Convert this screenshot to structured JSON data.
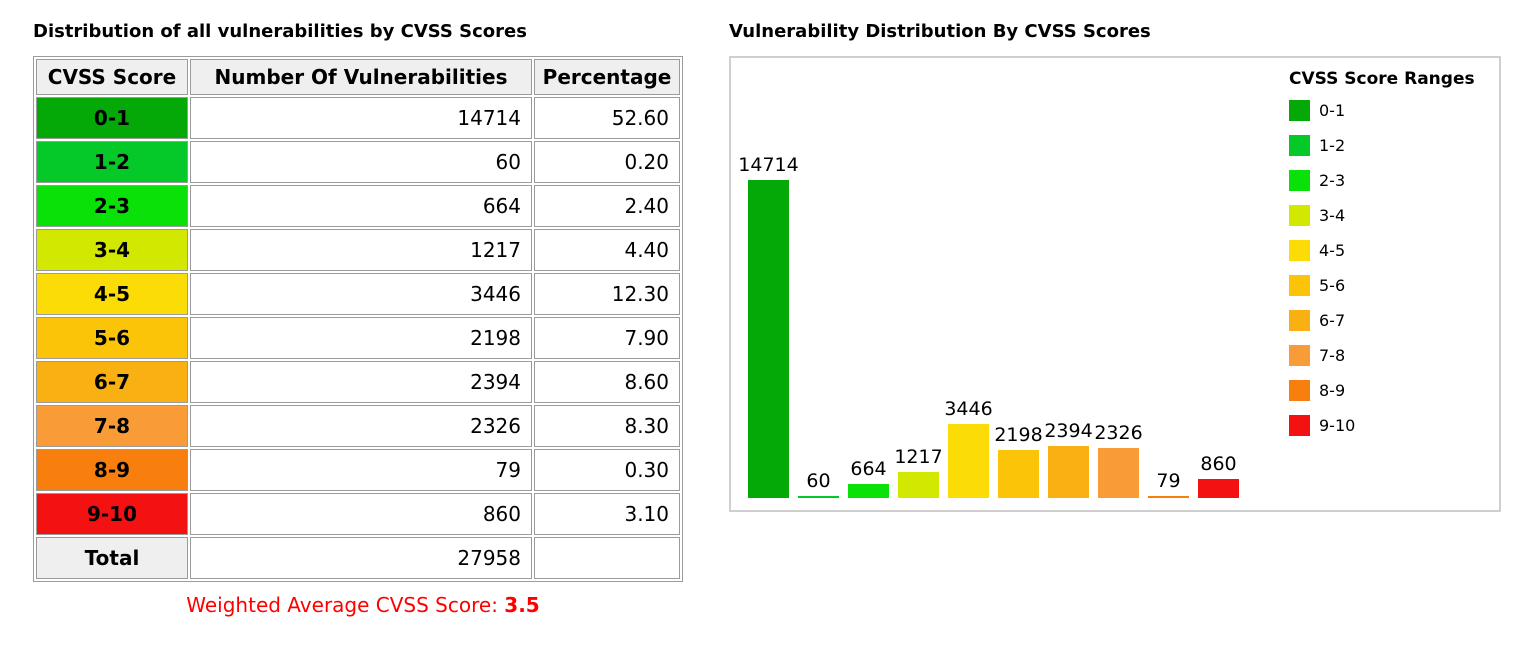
{
  "table_section": {
    "title": "Distribution of all vulnerabilities by CVSS Scores",
    "headers": [
      "CVSS Score",
      "Number Of Vulnerabilities",
      "Percentage"
    ],
    "rows": [
      {
        "range": "0-1",
        "count": "14714",
        "percentage": "52.60"
      },
      {
        "range": "1-2",
        "count": "60",
        "percentage": "0.20"
      },
      {
        "range": "2-3",
        "count": "664",
        "percentage": "2.40"
      },
      {
        "range": "3-4",
        "count": "1217",
        "percentage": "4.40"
      },
      {
        "range": "4-5",
        "count": "3446",
        "percentage": "12.30"
      },
      {
        "range": "5-6",
        "count": "2198",
        "percentage": "7.90"
      },
      {
        "range": "6-7",
        "count": "2394",
        "percentage": "8.60"
      },
      {
        "range": "7-8",
        "count": "2326",
        "percentage": "8.30"
      },
      {
        "range": "8-9",
        "count": "79",
        "percentage": "0.30"
      },
      {
        "range": "9-10",
        "count": "860",
        "percentage": "3.10"
      }
    ],
    "total_label": "Total",
    "total_count": "27958",
    "total_percentage": "",
    "weighted_label": "Weighted Average CVSS Score:",
    "weighted_value": "3.5",
    "colors": {
      "weighted_text": "#FF0000",
      "header_bg": "#EFEFEF",
      "cell_border": "#9B9B9B"
    }
  },
  "chart_data": {
    "type": "bar",
    "title": "Vulnerability Distribution By CVSS Scores",
    "categories": [
      "0-1",
      "1-2",
      "2-3",
      "3-4",
      "4-5",
      "5-6",
      "6-7",
      "7-8",
      "8-9",
      "9-10"
    ],
    "values": [
      14714,
      60,
      664,
      1217,
      3446,
      2198,
      2394,
      2326,
      79,
      860
    ],
    "bar_value_labels": [
      "14714",
      "60",
      "664",
      "1217",
      "3446",
      "2198",
      "2394",
      "2326",
      "79",
      "860"
    ],
    "colors": [
      "#04A908",
      "#04C929",
      "#09E109",
      "#D2E800",
      "#FBDC06",
      "#FCC409",
      "#F9B013",
      "#F99C38",
      "#F87F0E",
      "#F31111"
    ],
    "legend_title": "CVSS Score Ranges",
    "legend_position": "right",
    "xlabel": "",
    "ylabel": "",
    "ylim": [
      0,
      14714
    ],
    "grid": false,
    "plot_border_color": "#CFCFCF"
  }
}
